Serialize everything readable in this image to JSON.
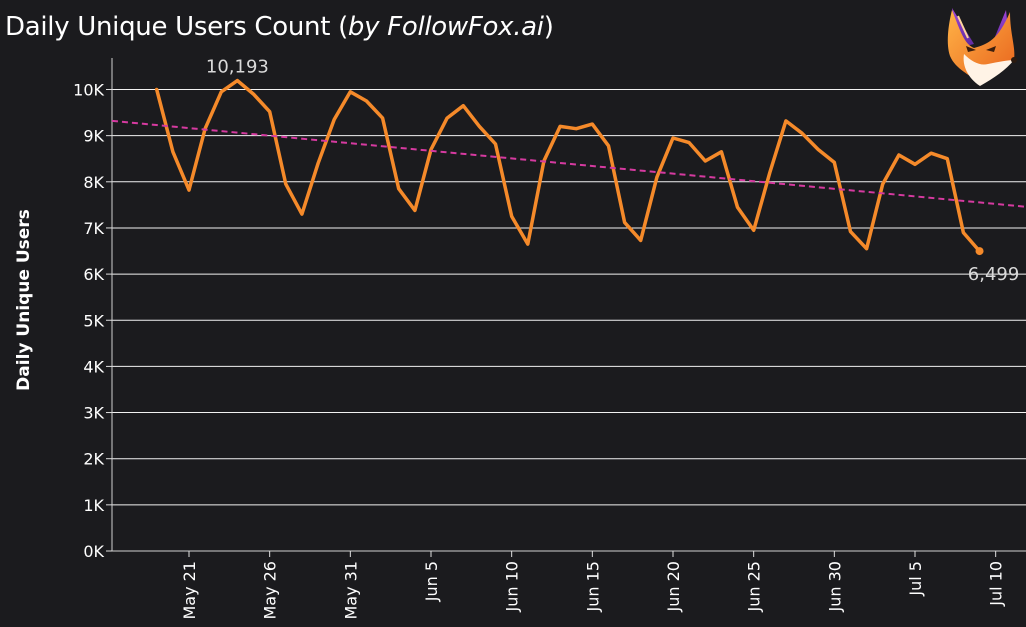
{
  "title": {
    "main": "Daily Unique Users Count (",
    "italic": "by FollowFox.ai",
    "close": ")"
  },
  "logo": {
    "icon": "fox-logo-icon"
  },
  "chart_data": {
    "type": "line",
    "ylabel": "Daily Unique Users",
    "xlabel": "",
    "ylim": [
      0,
      10500
    ],
    "y_ticks": [
      {
        "value": 0,
        "label": "0K"
      },
      {
        "value": 1000,
        "label": "1K"
      },
      {
        "value": 2000,
        "label": "2K"
      },
      {
        "value": 3000,
        "label": "3K"
      },
      {
        "value": 4000,
        "label": "4K"
      },
      {
        "value": 5000,
        "label": "5K"
      },
      {
        "value": 6000,
        "label": "6K"
      },
      {
        "value": 7000,
        "label": "7K"
      },
      {
        "value": 8000,
        "label": "8K"
      },
      {
        "value": 9000,
        "label": "9K"
      },
      {
        "value": 10000,
        "label": "10K"
      }
    ],
    "x_ticks": [
      "May 21",
      "May 26",
      "May 31",
      "Jun 5",
      "Jun 10",
      "Jun 15",
      "Jun 20",
      "Jun 25",
      "Jun 30",
      "Jul 5",
      "Jul 10"
    ],
    "grid": "horizontal",
    "series": [
      {
        "color": "#f58a2a",
        "x": [
          "May 19",
          "May 20",
          "May 21",
          "May 22",
          "May 23",
          "May 24",
          "May 25",
          "May 26",
          "May 27",
          "May 28",
          "May 29",
          "May 30",
          "May 31",
          "Jun 1",
          "Jun 2",
          "Jun 3",
          "Jun 4",
          "Jun 5",
          "Jun 6",
          "Jun 7",
          "Jun 8",
          "Jun 9",
          "Jun 10",
          "Jun 11",
          "Jun 12",
          "Jun 13",
          "Jun 14",
          "Jun 15",
          "Jun 16",
          "Jun 17",
          "Jun 18",
          "Jun 19",
          "Jun 20",
          "Jun 21",
          "Jun 22",
          "Jun 23",
          "Jun 24",
          "Jun 25",
          "Jun 26",
          "Jun 27",
          "Jun 28",
          "Jun 29",
          "Jun 30",
          "Jul 1",
          "Jul 2",
          "Jul 3",
          "Jul 4",
          "Jul 5",
          "Jul 6",
          "Jul 7",
          "Jul 8",
          "Jul 9"
        ],
        "values": [
          10000,
          8650,
          7820,
          9150,
          9950,
          10193,
          9900,
          9520,
          7950,
          7300,
          8400,
          9350,
          9950,
          9750,
          9380,
          7850,
          7380,
          8700,
          9380,
          9650,
          9200,
          8820,
          7250,
          6650,
          8450,
          9200,
          9150,
          9250,
          8780,
          7120,
          6730,
          8100,
          8950,
          8850,
          8450,
          8650,
          7450,
          6950,
          8200,
          9320,
          9050,
          8700,
          8420,
          6920,
          6550,
          7950,
          8580,
          8380,
          8620,
          8500,
          6900,
          6499
        ]
      },
      {
        "kind": "trendline",
        "color": "#d63aa0",
        "x": [
          "May 19",
          "Jul 10"
        ],
        "values": [
          9230,
          7520
        ]
      }
    ],
    "annotations": [
      {
        "label": "10,193",
        "x": "May 24",
        "value": 10193
      },
      {
        "label": "6,499",
        "x": "Jul 9",
        "value": 6499
      }
    ]
  }
}
